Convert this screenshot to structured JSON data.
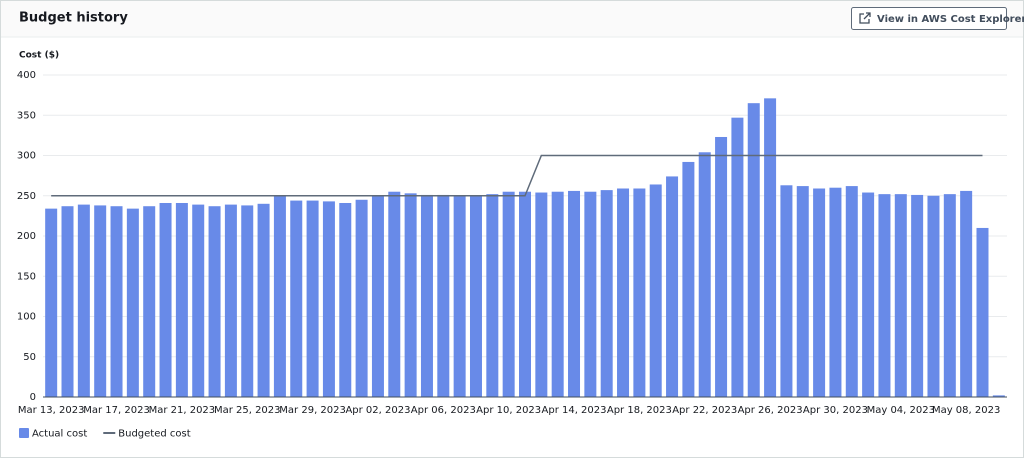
{
  "button": "View in AWS Cost Explorer",
  "chart_data": {
    "type": "bar",
    "title": "Budget history",
    "y_label": "Cost ($)",
    "categories": [
      "Mar 13, 2023",
      null,
      null,
      null,
      "Mar 17, 2023",
      null,
      null,
      null,
      "Mar 21, 2023",
      null,
      null,
      null,
      "Mar 25, 2023",
      null,
      null,
      null,
      "Mar 29, 2023",
      null,
      null,
      null,
      "Apr 02, 2023",
      null,
      null,
      null,
      "Apr 06, 2023",
      null,
      null,
      null,
      "Apr 10, 2023",
      null,
      null,
      null,
      "Apr 14, 2023",
      null,
      null,
      null,
      "Apr 18, 2023",
      null,
      null,
      null,
      "Apr 22, 2023",
      null,
      null,
      null,
      "Apr 26, 2023",
      null,
      null,
      null,
      "Apr 30, 2023",
      null,
      null,
      null,
      "May 04, 2023",
      null,
      null,
      null,
      "May 08, 2023",
      null,
      null
    ],
    "series": [
      {
        "name": "Actual cost",
        "type": "bar",
        "color": "#688ae8",
        "values": [
          234,
          237,
          239,
          238,
          237,
          234,
          237,
          241,
          241,
          239,
          237,
          239,
          238,
          240,
          250,
          244,
          244,
          243,
          241,
          245,
          250,
          255,
          253,
          251,
          251,
          250,
          250,
          252,
          255,
          255,
          254,
          255,
          256,
          255,
          257,
          259,
          259,
          264,
          274,
          292,
          304,
          323,
          347,
          365,
          371,
          263,
          262,
          259,
          260,
          262,
          254,
          252,
          252,
          251,
          250,
          252,
          256,
          210,
          2
        ]
      },
      {
        "name": "Budgeted cost",
        "type": "line",
        "color": "#5f6b7a",
        "values": [
          250,
          250,
          250,
          250,
          250,
          250,
          250,
          250,
          250,
          250,
          250,
          250,
          250,
          250,
          250,
          250,
          250,
          250,
          250,
          250,
          250,
          250,
          250,
          250,
          250,
          250,
          250,
          250,
          250,
          250,
          300,
          300,
          300,
          300,
          300,
          300,
          300,
          300,
          300,
          300,
          300,
          300,
          300,
          300,
          300,
          300,
          300,
          300,
          300,
          300,
          300,
          300,
          300,
          300,
          300,
          300,
          300,
          300,
          null
        ]
      }
    ],
    "ylim": [
      0,
      400
    ],
    "yticks": [
      0,
      50,
      100,
      150,
      200,
      250,
      300,
      350,
      400
    ],
    "grid": true
  }
}
